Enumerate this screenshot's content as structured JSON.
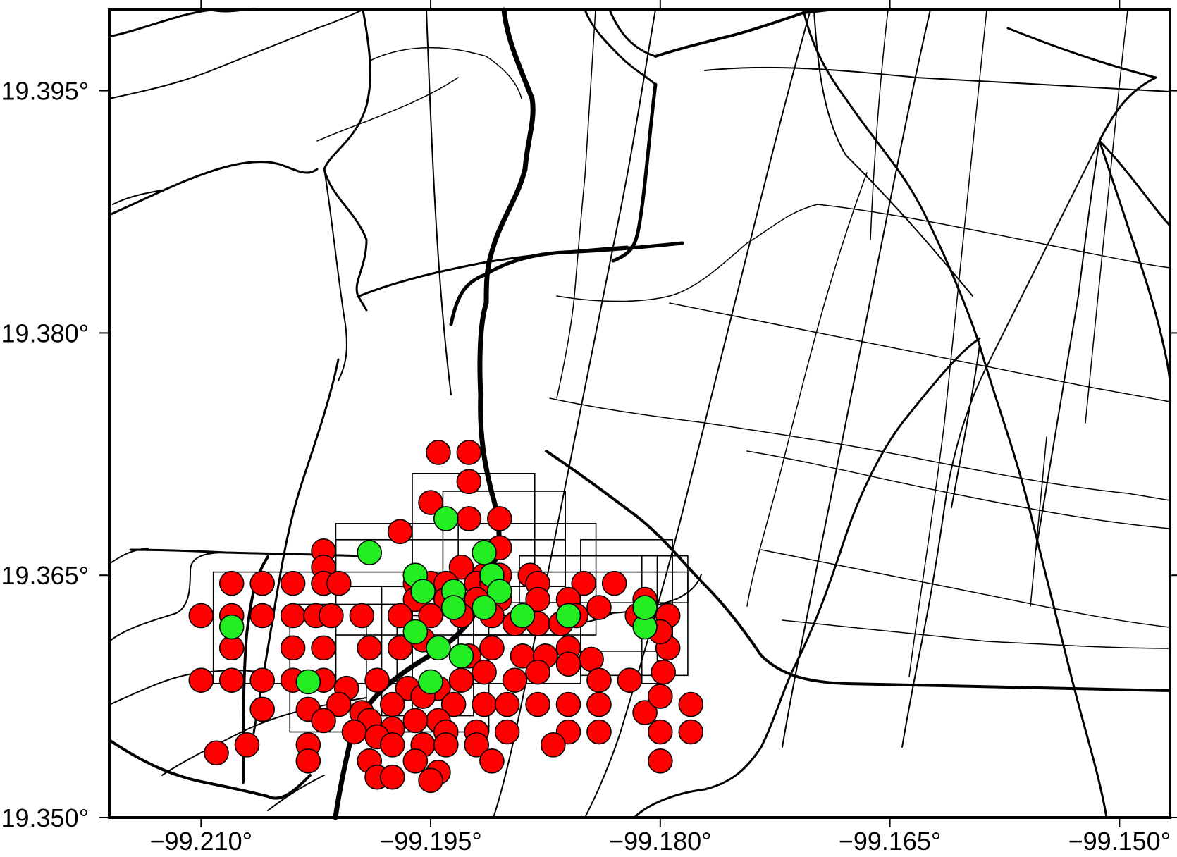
{
  "map": {
    "x_axis": {
      "ticks": [
        {
          "value": -99.21,
          "label": "−99.210°"
        },
        {
          "value": -99.195,
          "label": "−99.195°"
        },
        {
          "value": -99.18,
          "label": "−99.180°"
        },
        {
          "value": -99.165,
          "label": "−99.165°"
        },
        {
          "value": -99.15,
          "label": "−99.150°"
        }
      ],
      "range": [
        -99.216,
        -99.1467
      ]
    },
    "y_axis": {
      "ticks": [
        {
          "value": 19.395,
          "label": "19.395°"
        },
        {
          "value": 19.38,
          "label": "19.380°"
        },
        {
          "value": 19.365,
          "label": "19.365°"
        },
        {
          "value": 19.35,
          "label": "19.350°"
        }
      ],
      "range": [
        19.35,
        19.4
      ]
    },
    "colors": {
      "red_marker": "#ff0000",
      "green_marker": "#22ee22",
      "roads": "#000000",
      "frame": "#000000",
      "background": "#ffffff"
    }
  }
}
